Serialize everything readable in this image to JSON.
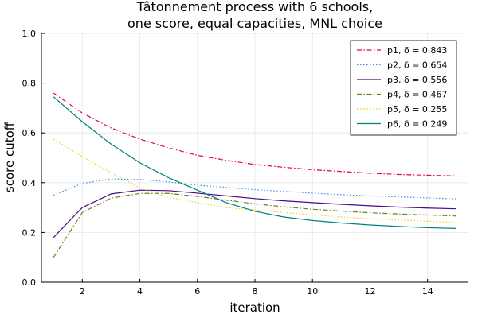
{
  "chart_data": {
    "type": "line",
    "title_line1": "Tâtonnement process with 6 schools,",
    "title_line2": "one score, equal capacities, MNL choice",
    "xlabel": "iteration",
    "ylabel": "score cutoff",
    "xlim": [
      0.58,
      15.42
    ],
    "ylim": [
      0,
      1
    ],
    "xticks": [
      2,
      4,
      6,
      8,
      10,
      12,
      14
    ],
    "yticks": [
      0.0,
      0.2,
      0.4,
      0.6,
      0.8,
      1.0
    ],
    "ytick_labels": [
      "0.0",
      "0.2",
      "0.4",
      "0.6",
      "0.8",
      "1.0"
    ],
    "grid": true,
    "legend_position": "top-right",
    "x": [
      1,
      2,
      3,
      4,
      5,
      6,
      7,
      8,
      9,
      10,
      11,
      12,
      13,
      14,
      15
    ],
    "series": [
      {
        "name": "p1, δ = 0.843",
        "color": "#e2005b",
        "dash": "dashdot",
        "values": [
          0.76,
          0.68,
          0.62,
          0.575,
          0.54,
          0.51,
          0.49,
          0.473,
          0.462,
          0.452,
          0.445,
          0.438,
          0.433,
          0.43,
          0.427
        ]
      },
      {
        "name": "p2, δ = 0.654",
        "color": "#3f8fe8",
        "dash": "dot",
        "values": [
          0.35,
          0.397,
          0.415,
          0.413,
          0.403,
          0.39,
          0.381,
          0.372,
          0.365,
          0.358,
          0.352,
          0.347,
          0.343,
          0.339,
          0.335
        ]
      },
      {
        "name": "p3, δ = 0.556",
        "color": "#4b0a8a",
        "dash": "solid",
        "values": [
          0.18,
          0.3,
          0.355,
          0.37,
          0.368,
          0.358,
          0.347,
          0.336,
          0.327,
          0.32,
          0.313,
          0.307,
          0.302,
          0.298,
          0.295
        ]
      },
      {
        "name": "p4, δ = 0.467",
        "color": "#6b7f1c",
        "dash": "dashdot",
        "values": [
          0.1,
          0.28,
          0.338,
          0.357,
          0.357,
          0.345,
          0.33,
          0.315,
          0.303,
          0.293,
          0.286,
          0.279,
          0.274,
          0.27,
          0.266
        ]
      },
      {
        "name": "p5, δ = 0.255",
        "color": "#f5d000",
        "dash": "dot",
        "values": [
          0.575,
          0.505,
          0.44,
          0.38,
          0.34,
          0.32,
          0.3,
          0.29,
          0.28,
          0.27,
          0.262,
          0.255,
          0.25,
          0.245,
          0.24
        ]
      },
      {
        "name": "p6, δ = 0.249",
        "color": "#00807d",
        "dash": "solid",
        "values": [
          0.745,
          0.645,
          0.555,
          0.48,
          0.42,
          0.37,
          0.32,
          0.285,
          0.262,
          0.248,
          0.238,
          0.23,
          0.224,
          0.219,
          0.216
        ]
      }
    ]
  }
}
